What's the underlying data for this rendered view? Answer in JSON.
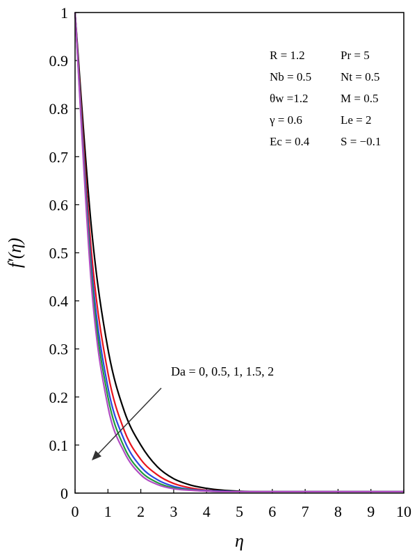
{
  "chart_data": {
    "type": "line",
    "xlabel": "η",
    "ylabel": "f′(η)",
    "xlim": [
      0,
      10
    ],
    "ylim": [
      0,
      1
    ],
    "x_ticks": [
      "0",
      "1",
      "2",
      "3",
      "4",
      "5",
      "6",
      "7",
      "8",
      "9",
      "10"
    ],
    "y_ticks": [
      "0",
      "0.1",
      "0.2",
      "0.3",
      "0.4",
      "0.5",
      "0.6",
      "0.7",
      "0.8",
      "0.9",
      "1"
    ],
    "x": [
      0,
      0.5,
      1,
      1.5,
      2,
      2.5,
      3,
      3.5,
      4,
      4.5,
      5,
      6,
      7,
      8,
      9,
      10
    ],
    "series": [
      {
        "values": [
          1,
          0.55,
          0.3,
          0.17,
          0.1,
          0.055,
          0.03,
          0.017,
          0.01,
          0.006,
          0.004,
          0.003,
          0.003,
          0.003,
          0.003,
          0.003
        ],
        "color": "#000000"
      },
      {
        "values": [
          1,
          0.5,
          0.25,
          0.13,
          0.07,
          0.038,
          0.02,
          0.011,
          0.006,
          0.004,
          0.003,
          0.003,
          0.003,
          0.003,
          0.003,
          0.003
        ],
        "color": "#e8141c"
      },
      {
        "values": [
          1,
          0.47,
          0.22,
          0.11,
          0.055,
          0.028,
          0.014,
          0.008,
          0.005,
          0.004,
          0.003,
          0.003,
          0.003,
          0.003,
          0.003,
          0.003
        ],
        "color": "#2b47e0"
      },
      {
        "values": [
          1,
          0.45,
          0.2,
          0.095,
          0.045,
          0.022,
          0.011,
          0.007,
          0.004,
          0.003,
          0.003,
          0.003,
          0.003,
          0.003,
          0.003,
          0.003
        ],
        "color": "#1f9a3a"
      },
      {
        "values": [
          1,
          0.43,
          0.18,
          0.085,
          0.038,
          0.018,
          0.009,
          0.006,
          0.004,
          0.003,
          0.003,
          0.003,
          0.003,
          0.003,
          0.003,
          0.003
        ],
        "color": "#b04cc2"
      }
    ],
    "parameters": [
      {
        "left": "R = 1.2",
        "right": "Pr = 5"
      },
      {
        "left": "Nb = 0.5",
        "right": "Nt = 0.5"
      },
      {
        "left": "θw =1.2",
        "right": "M = 0.5"
      },
      {
        "left": "γ = 0.6",
        "right": "Le = 2"
      },
      {
        "left": "Ec = 0.4",
        "right": "S = −0.1"
      }
    ],
    "annotation": "Da = 0, 0.5, 1, 1.5, 2",
    "grid": false
  }
}
